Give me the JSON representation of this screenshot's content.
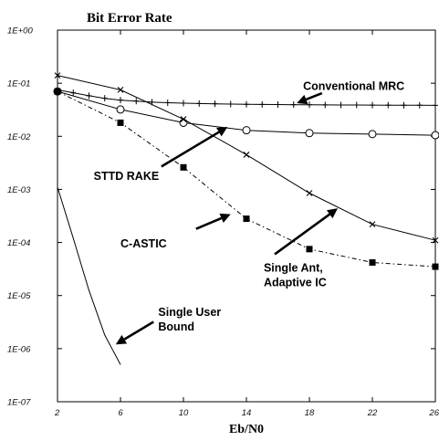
{
  "chart_data": {
    "type": "line",
    "title": "Bit Error Rate",
    "xlabel": "Eb/N0",
    "ylabel": "",
    "yscale": "log",
    "xlim": [
      2,
      26
    ],
    "ylim": [
      1e-07,
      1
    ],
    "x_ticks": [
      "2",
      "6",
      "10",
      "14",
      "18",
      "22",
      "26"
    ],
    "y_ticks": [
      "1E+00",
      "1E-01",
      "1E-02",
      "1E-03",
      "1E-04",
      "1E-05",
      "1E-06",
      "1E-07"
    ],
    "grid": false,
    "series": [
      {
        "marker": "plus",
        "dash": "solid",
        "x": [
          2,
          3,
          4,
          5,
          6,
          7,
          8,
          9,
          10,
          11,
          12,
          13,
          14,
          15,
          16,
          17,
          18,
          19,
          20,
          21,
          22,
          23,
          24,
          25,
          26
        ],
        "y": [
          0.075,
          0.066,
          0.058,
          0.052,
          0.048,
          0.046,
          0.044,
          0.043,
          0.042,
          0.0415,
          0.041,
          0.0405,
          0.04,
          0.0398,
          0.0396,
          0.0394,
          0.0392,
          0.039,
          0.0389,
          0.0388,
          0.0387,
          0.0386,
          0.0385,
          0.0384,
          0.0383
        ]
      },
      {
        "marker": "circle",
        "dash": "solid",
        "x": [
          2,
          6,
          10,
          14,
          18,
          22,
          26
        ],
        "y": [
          0.07,
          0.032,
          0.018,
          0.013,
          0.0115,
          0.011,
          0.0105
        ]
      },
      {
        "marker": "x",
        "dash": "solid",
        "x": [
          2,
          6,
          10,
          14,
          18,
          22,
          26
        ],
        "y": [
          0.14,
          0.075,
          0.021,
          0.0045,
          0.00085,
          0.00022,
          0.00011
        ]
      },
      {
        "marker": "square",
        "dash": "dashdot",
        "x": [
          2,
          6,
          10,
          14,
          18,
          22,
          26
        ],
        "y": [
          0.07,
          0.018,
          0.0026,
          0.00028,
          7.5e-05,
          4.2e-05,
          3.5e-05
        ]
      },
      {
        "marker": "none",
        "dash": "solid",
        "x": [
          2,
          3,
          4,
          5,
          5.5,
          6
        ],
        "y": [
          0.0011,
          0.00012,
          1.25e-05,
          1.8e-06,
          9.5e-07,
          5e-07
        ]
      }
    ],
    "annotations": [
      {
        "lines": [
          "Conventional MRC"
        ],
        "x": 17.6,
        "y": 0.075,
        "arrow_from": [
          18.8,
          0.065
        ],
        "arrow_to": [
          17.2,
          0.042
        ]
      },
      {
        "lines": [
          "STTD RAKE"
        ],
        "x": 4.3,
        "y": 0.0015,
        "arrow_from": [
          8.6,
          0.0027
        ],
        "arrow_to": [
          12.8,
          0.015
        ]
      },
      {
        "lines": [
          "C-ASTIC"
        ],
        "x": 6.0,
        "y": 8e-05,
        "arrow_from": [
          10.8,
          0.00018
        ],
        "arrow_to": [
          13.0,
          0.00034
        ]
      },
      {
        "lines": [
          "Single Ant,",
          "Adaptive IC"
        ],
        "x": 15.1,
        "y": 2.8e-05,
        "arrow_from": [
          15.8,
          6e-05
        ],
        "arrow_to": [
          19.8,
          0.00044
        ]
      },
      {
        "lines": [
          "Single User",
          "Bound"
        ],
        "x": 8.4,
        "y": 4.1e-06,
        "arrow_from": [
          8.1,
          3.2e-06
        ],
        "arrow_to": [
          5.7,
          1.2e-06
        ]
      }
    ]
  }
}
